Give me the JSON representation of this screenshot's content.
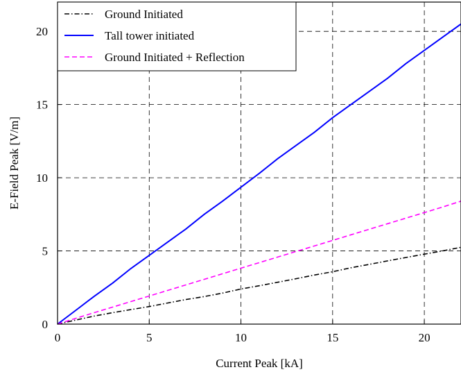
{
  "chart_data": {
    "type": "line",
    "title": "",
    "xlabel": "Current Peak [kA]",
    "ylabel": "E-Field Peak [V/m]",
    "xlim": [
      0,
      22
    ],
    "ylim": [
      0,
      22
    ],
    "xticks": [
      0,
      5,
      10,
      15,
      20
    ],
    "yticks": [
      0,
      5,
      10,
      15,
      20
    ],
    "grid": true,
    "legend_position": "top-left",
    "series": [
      {
        "name": "Ground Initiated",
        "color": "#000000",
        "style": "dash-dot",
        "x": [
          0,
          1,
          2,
          3,
          4,
          5,
          6,
          7,
          8,
          9,
          10,
          11,
          12,
          13,
          14,
          15,
          16,
          17,
          18,
          19,
          20,
          21,
          22
        ],
        "y": [
          0,
          0.28,
          0.55,
          0.78,
          0.99,
          1.2,
          1.44,
          1.68,
          1.88,
          2.12,
          2.4,
          2.62,
          2.86,
          3.1,
          3.35,
          3.58,
          3.85,
          4.08,
          4.32,
          4.55,
          4.78,
          5.0,
          5.25
        ]
      },
      {
        "name": "Tall tower initiated",
        "color": "#0000ff",
        "style": "solid",
        "x": [
          0,
          1,
          2,
          3,
          4,
          5,
          6,
          7,
          8,
          9,
          10,
          11,
          12,
          13,
          14,
          15,
          16,
          17,
          18,
          19,
          20,
          21,
          22
        ],
        "y": [
          0,
          0.95,
          1.9,
          2.8,
          3.8,
          4.7,
          5.6,
          6.5,
          7.5,
          8.4,
          9.35,
          10.3,
          11.3,
          12.2,
          13.1,
          14.1,
          15.0,
          15.9,
          16.8,
          17.8,
          18.7,
          19.6,
          20.5
        ]
      },
      {
        "name": "Ground Initiated + Reflection",
        "color": "#ff00ff",
        "style": "dashed",
        "x": [
          0,
          1,
          2,
          3,
          4,
          5,
          6,
          7,
          8,
          9,
          10,
          11,
          12,
          13,
          14,
          15,
          16,
          17,
          18,
          19,
          20,
          21,
          22
        ],
        "y": [
          0,
          0.4,
          0.78,
          1.16,
          1.54,
          1.92,
          2.3,
          2.68,
          3.06,
          3.44,
          3.82,
          4.2,
          4.58,
          4.96,
          5.34,
          5.72,
          6.1,
          6.48,
          6.86,
          7.24,
          7.62,
          8.0,
          8.4
        ]
      }
    ]
  }
}
